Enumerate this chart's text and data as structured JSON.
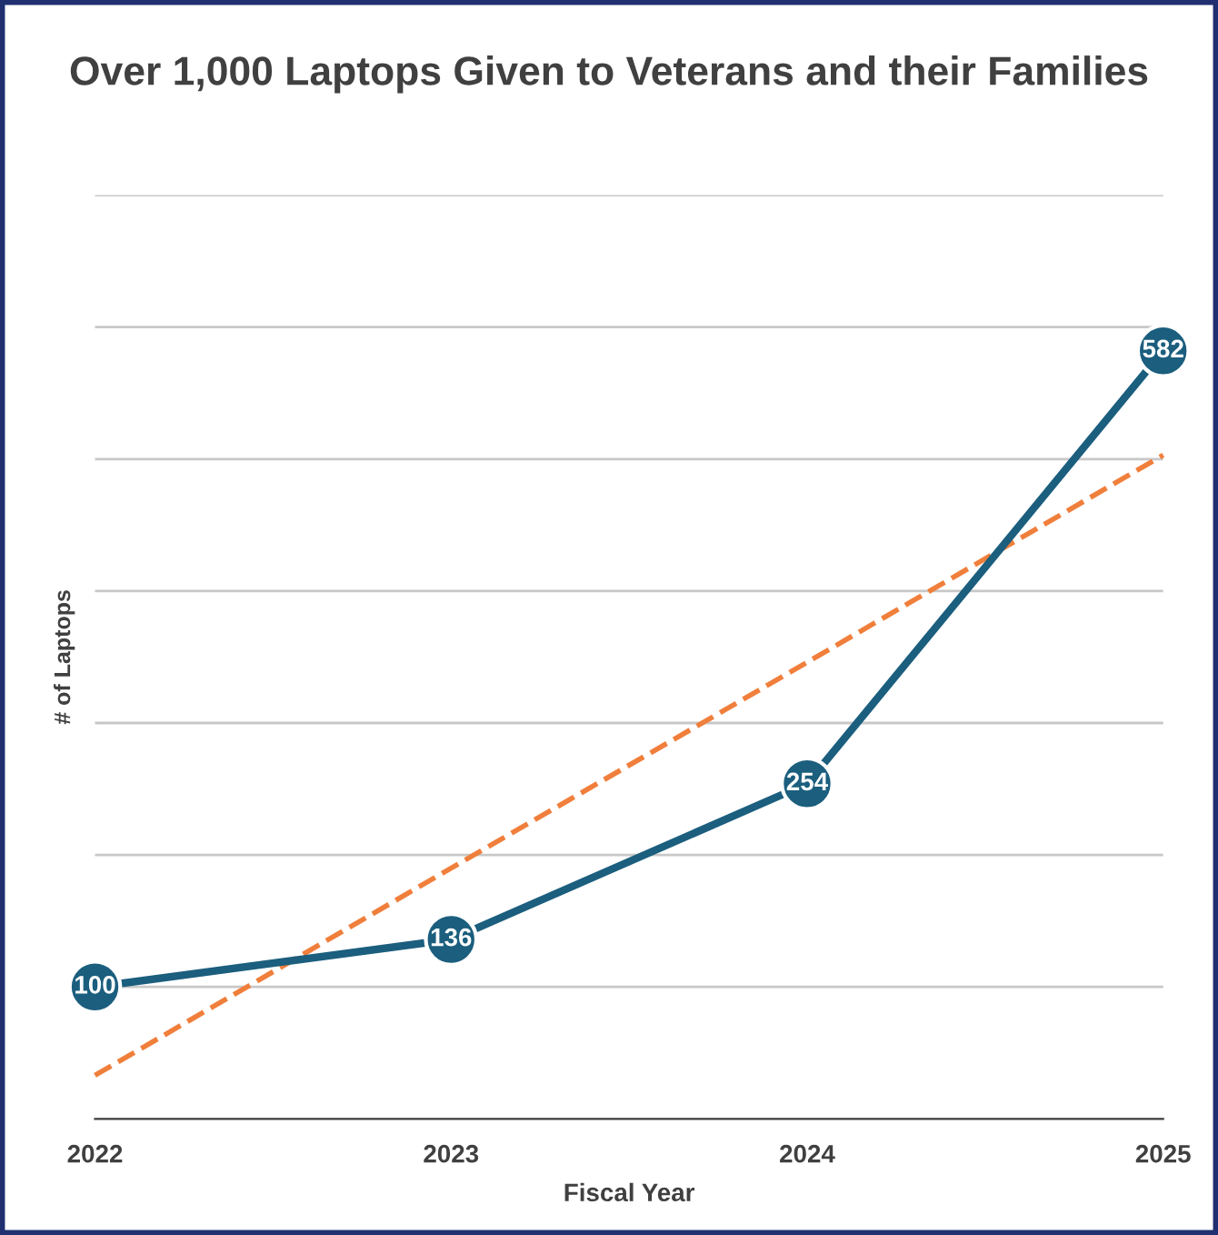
{
  "chart_data": {
    "type": "line",
    "title": "Over 1,000 Laptops Given to Veterans and their Families",
    "xlabel": "Fiscal Year",
    "ylabel": "# of Laptops",
    "categories": [
      "2022",
      "2023",
      "2024",
      "2025"
    ],
    "series": [
      {
        "color": "#1b5e7e",
        "values": [
          100,
          136,
          254,
          582
        ],
        "value_labels": [
          "100",
          "136",
          "254",
          "582"
        ],
        "marker": "circle",
        "line_style": "solid"
      },
      {
        "type": "line",
        "color": "#f07f3c",
        "values": [
          33,
          190,
          346,
          503
        ],
        "marker": "none",
        "line_style": "dashed"
      }
    ],
    "ylim": [
      0,
      700
    ],
    "yticks": [
      {
        "value": 0,
        "label": null
      },
      {
        "value": 100,
        "label": null
      },
      {
        "value": 200,
        "label": null
      },
      {
        "value": 300,
        "label": null
      },
      {
        "value": 400,
        "label": null
      },
      {
        "value": 500,
        "label": null
      },
      {
        "value": 600,
        "label": null
      },
      {
        "value": 700,
        "label": null
      }
    ],
    "tick_labels": "x",
    "grid": "y",
    "legend": false
  }
}
